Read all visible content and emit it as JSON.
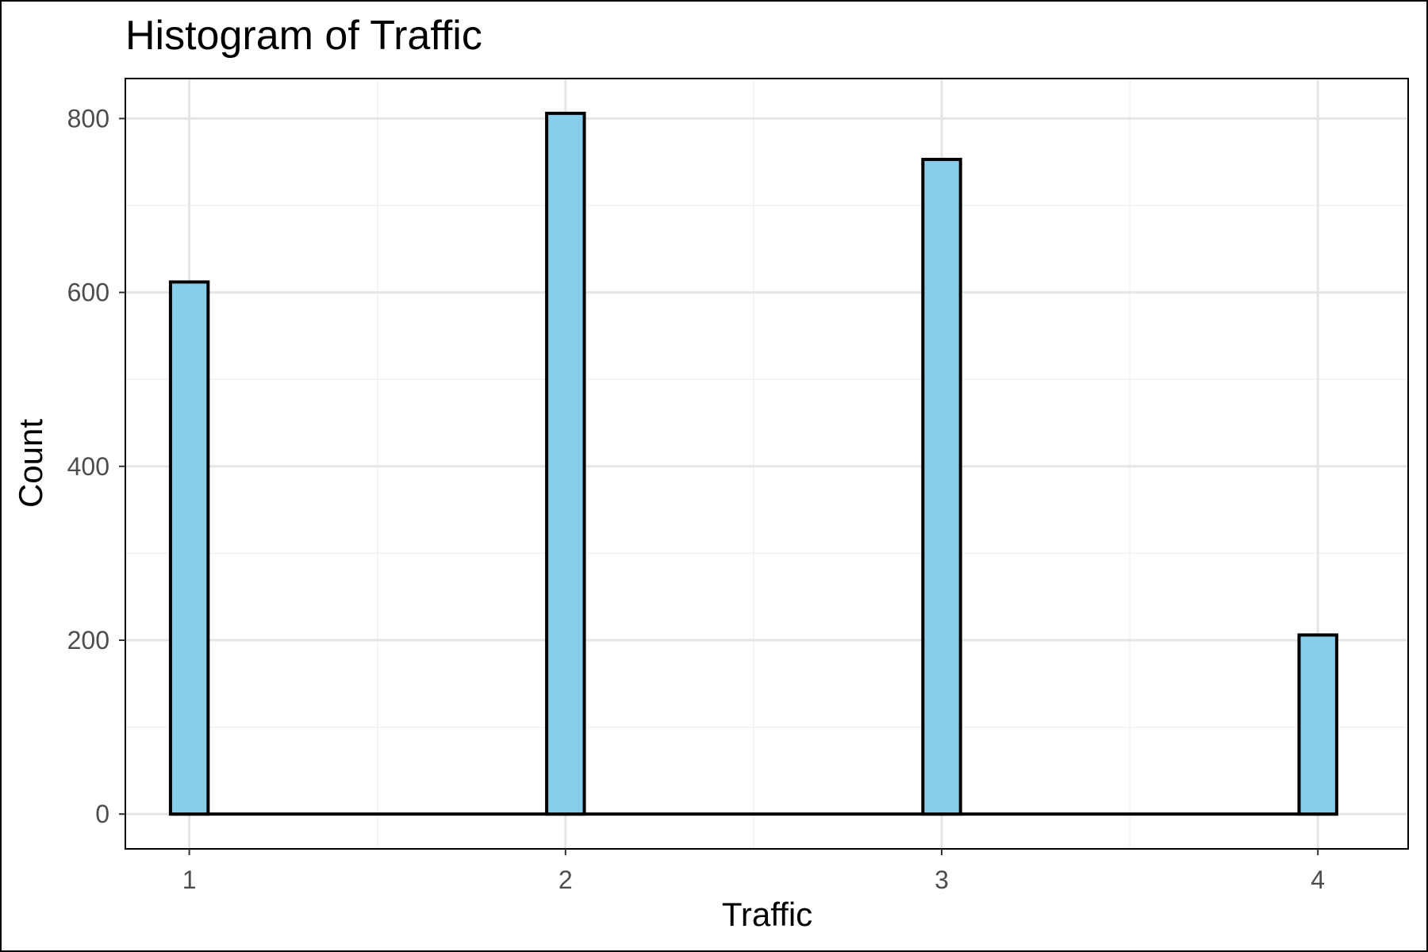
{
  "chart_data": {
    "type": "bar",
    "title": "Histogram of Traffic",
    "xlabel": "Traffic",
    "ylabel": "Count",
    "x_ticks": [
      1,
      2,
      3,
      4
    ],
    "y_ticks": [
      0,
      200,
      400,
      600,
      800
    ],
    "xlim": [
      0.83,
      4.24
    ],
    "ylim": [
      -40,
      846
    ],
    "bar_width": 0.1,
    "x": [
      1,
      2,
      3,
      4
    ],
    "values": [
      612,
      806,
      753,
      206
    ],
    "bar_color": "#87ceeb",
    "outline_color": "#000000",
    "grid": true,
    "legend": "none"
  }
}
